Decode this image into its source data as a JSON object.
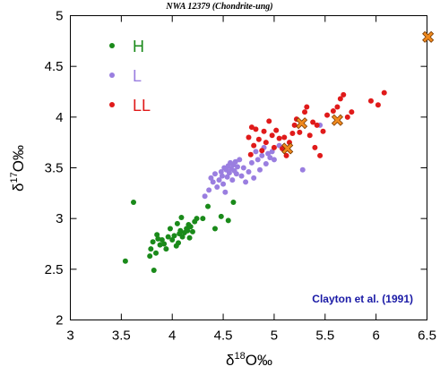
{
  "chart_data": {
    "type": "scatter",
    "title": "NWA 12379 (Chondrite-ung)",
    "xlabel": {
      "prefix": "δ",
      "sup": "18",
      "main": "O‰"
    },
    "ylabel": {
      "prefix": "δ",
      "sup": "17",
      "main": "O‰"
    },
    "xlim": [
      3,
      6.5
    ],
    "ylim": [
      2,
      5
    ],
    "xticks": [
      "3",
      "3.5",
      "4",
      "4.5",
      "5",
      "5.5",
      "6",
      "6.5"
    ],
    "yticks": [
      "2",
      "2.5",
      "3",
      "3.5",
      "4",
      "4.5",
      "5"
    ],
    "grid": false,
    "legend_position": "top-left",
    "annotation": {
      "text": "Clayton et al. (1991)",
      "color": "#1a1aa6"
    },
    "series": [
      {
        "name": "H",
        "color": "#1a8a1a",
        "marker": "circle",
        "points": [
          [
            3.54,
            2.58
          ],
          [
            3.62,
            3.16
          ],
          [
            3.78,
            2.63
          ],
          [
            3.79,
            2.7
          ],
          [
            3.81,
            2.77
          ],
          [
            3.82,
            2.49
          ],
          [
            3.84,
            2.66
          ],
          [
            3.85,
            2.84
          ],
          [
            3.86,
            2.8
          ],
          [
            3.88,
            2.74
          ],
          [
            3.9,
            2.79
          ],
          [
            3.92,
            2.75
          ],
          [
            3.94,
            2.7
          ],
          [
            3.96,
            2.82
          ],
          [
            3.98,
            2.9
          ],
          [
            4.0,
            2.79
          ],
          [
            4.02,
            2.83
          ],
          [
            4.04,
            2.73
          ],
          [
            4.05,
            2.95
          ],
          [
            4.06,
            2.76
          ],
          [
            4.07,
            2.85
          ],
          [
            4.08,
            2.88
          ],
          [
            4.09,
            3.01
          ],
          [
            4.1,
            2.82
          ],
          [
            4.12,
            2.86
          ],
          [
            4.14,
            2.9
          ],
          [
            4.15,
            2.88
          ],
          [
            4.16,
            2.94
          ],
          [
            4.17,
            2.81
          ],
          [
            4.18,
            2.92
          ],
          [
            4.2,
            2.87
          ],
          [
            4.22,
            2.97
          ],
          [
            4.24,
            3.0
          ],
          [
            4.3,
            3.0
          ],
          [
            4.35,
            3.12
          ],
          [
            4.42,
            2.9
          ],
          [
            4.48,
            3.02
          ],
          [
            4.55,
            2.98
          ],
          [
            4.6,
            3.16
          ]
        ]
      },
      {
        "name": "L",
        "color": "#9a7ee0",
        "marker": "circle",
        "points": [
          [
            4.32,
            3.22
          ],
          [
            4.36,
            3.28
          ],
          [
            4.38,
            3.4
          ],
          [
            4.4,
            3.36
          ],
          [
            4.42,
            3.44
          ],
          [
            4.44,
            3.31
          ],
          [
            4.46,
            3.38
          ],
          [
            4.48,
            3.46
          ],
          [
            4.49,
            3.42
          ],
          [
            4.5,
            3.34
          ],
          [
            4.51,
            3.5
          ],
          [
            4.52,
            3.26
          ],
          [
            4.53,
            3.48
          ],
          [
            4.54,
            3.41
          ],
          [
            4.55,
            3.52
          ],
          [
            4.56,
            3.45
          ],
          [
            4.57,
            3.55
          ],
          [
            4.58,
            3.49
          ],
          [
            4.59,
            3.38
          ],
          [
            4.6,
            3.53
          ],
          [
            4.61,
            3.47
          ],
          [
            4.62,
            3.56
          ],
          [
            4.63,
            3.44
          ],
          [
            4.64,
            3.51
          ],
          [
            4.66,
            3.58
          ],
          [
            4.68,
            3.42
          ],
          [
            4.7,
            3.5
          ],
          [
            4.72,
            3.36
          ],
          [
            4.75,
            3.46
          ],
          [
            4.78,
            3.55
          ],
          [
            4.8,
            3.4
          ],
          [
            4.82,
            3.66
          ],
          [
            4.84,
            3.58
          ],
          [
            4.86,
            3.48
          ],
          [
            4.88,
            3.62
          ],
          [
            4.9,
            3.7
          ],
          [
            4.92,
            3.54
          ],
          [
            4.94,
            3.64
          ],
          [
            4.96,
            3.6
          ],
          [
            4.98,
            3.66
          ],
          [
            5.0,
            3.58
          ],
          [
            5.05,
            3.72
          ],
          [
            5.28,
            3.48
          ],
          [
            5.45,
            3.92
          ]
        ]
      },
      {
        "name": "LL",
        "color": "#e01a1a",
        "marker": "circle",
        "points": [
          [
            4.75,
            3.8
          ],
          [
            4.77,
            3.63
          ],
          [
            4.78,
            3.9
          ],
          [
            4.8,
            3.72
          ],
          [
            4.82,
            3.88
          ],
          [
            4.85,
            3.78
          ],
          [
            4.88,
            3.67
          ],
          [
            4.9,
            3.86
          ],
          [
            4.92,
            3.75
          ],
          [
            4.95,
            3.96
          ],
          [
            4.98,
            3.82
          ],
          [
            5.0,
            3.7
          ],
          [
            5.02,
            3.87
          ],
          [
            5.05,
            3.79
          ],
          [
            5.08,
            3.69
          ],
          [
            5.1,
            3.8
          ],
          [
            5.12,
            3.62
          ],
          [
            5.15,
            3.75
          ],
          [
            5.18,
            3.84
          ],
          [
            5.2,
            3.92
          ],
          [
            5.22,
            3.98
          ],
          [
            5.25,
            3.85
          ],
          [
            5.3,
            4.05
          ],
          [
            5.32,
            4.1
          ],
          [
            5.35,
            3.82
          ],
          [
            5.38,
            3.95
          ],
          [
            5.4,
            3.7
          ],
          [
            5.42,
            3.92
          ],
          [
            5.45,
            3.62
          ],
          [
            5.48,
            3.86
          ],
          [
            5.52,
            4.02
          ],
          [
            5.58,
            4.06
          ],
          [
            5.62,
            4.1
          ],
          [
            5.65,
            4.18
          ],
          [
            5.68,
            4.22
          ],
          [
            5.72,
            4.0
          ],
          [
            5.76,
            4.05
          ],
          [
            5.95,
            4.16
          ],
          [
            6.02,
            4.12
          ],
          [
            6.08,
            4.24
          ]
        ]
      },
      {
        "marker": "cross",
        "color": "#f08a1e",
        "points": [
          [
            5.27,
            3.94
          ],
          [
            5.13,
            3.69
          ],
          [
            5.62,
            3.97
          ],
          [
            6.51,
            4.79
          ]
        ]
      }
    ]
  }
}
